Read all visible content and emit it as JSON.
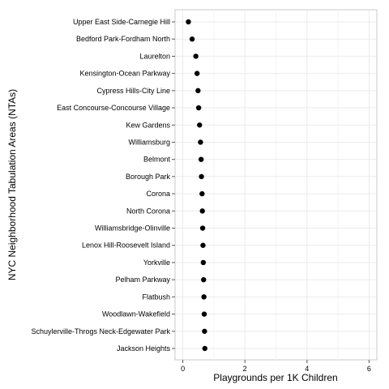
{
  "chart_data": {
    "type": "scatter",
    "title": "",
    "xlabel": "Playgrounds per 1K Children",
    "ylabel": "NYC Neighborhood Tabulation Areas (NTAs)",
    "xlim": [
      -0.25,
      6.25
    ],
    "xticks": [
      0,
      2,
      4,
      6
    ],
    "xtick_labels": [
      "0",
      "2",
      "4",
      "6"
    ],
    "grid": true,
    "legend": "none",
    "point_color": "#000000",
    "categories": [
      "Upper East Side-Carnegie Hill",
      "Bedford Park-Fordham North",
      "Laurelton",
      "Kensington-Ocean Parkway",
      "Cypress Hills-City Line",
      "East Concourse-Concourse Village",
      "Kew Gardens",
      "Williamsburg",
      "Belmont",
      "Borough Park",
      "Corona",
      "North Corona",
      "Williamsbridge-Olinville",
      "Lenox Hill-Roosevelt Island",
      "Yorkville",
      "Pelham Parkway",
      "Flatbush",
      "Woodlawn-Wakefield",
      "Schuylerville-Throgs Neck-Edgewater Park",
      "Jackson Heights"
    ],
    "values": [
      0.18,
      0.3,
      0.42,
      0.46,
      0.49,
      0.51,
      0.54,
      0.57,
      0.59,
      0.6,
      0.62,
      0.63,
      0.64,
      0.65,
      0.66,
      0.67,
      0.68,
      0.69,
      0.7,
      0.71
    ]
  }
}
